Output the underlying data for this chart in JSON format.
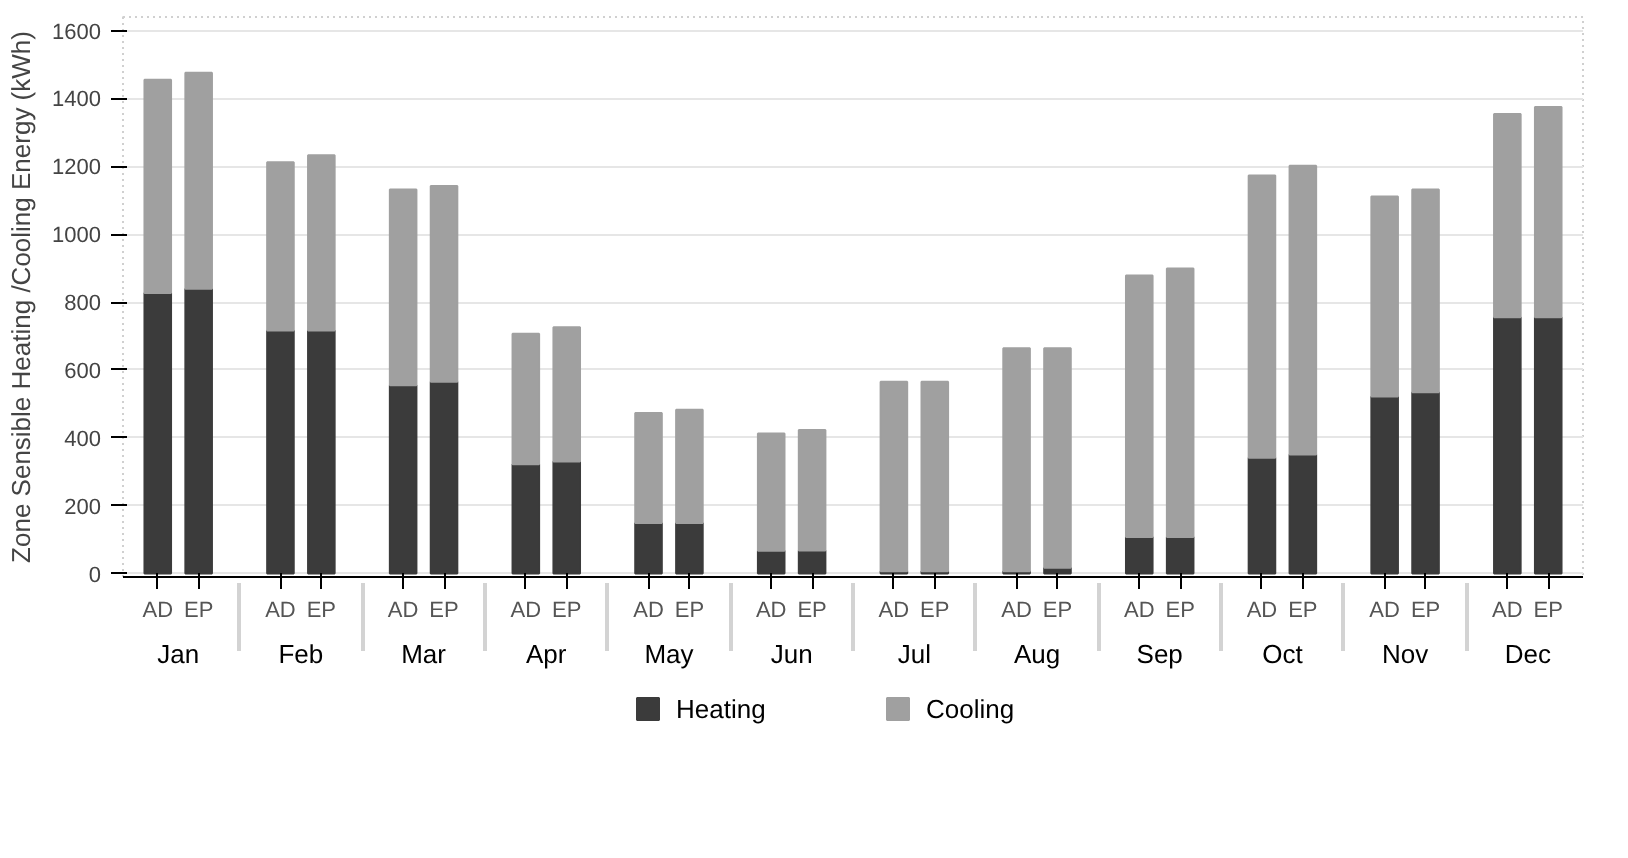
{
  "chart_data": {
    "type": "bar",
    "stacked": true,
    "ylabel": "Zone Sensible Heating /Cooling Energy (kWh)",
    "categories": [
      [
        "Jan",
        "AD"
      ],
      [
        null,
        "EP"
      ],
      [
        "Feb",
        "AD"
      ],
      [
        null,
        "EP"
      ],
      [
        "Mar",
        "AD"
      ],
      [
        null,
        "EP"
      ],
      [
        "Apr",
        "AD"
      ],
      [
        null,
        "EP"
      ],
      [
        "May",
        "AD"
      ],
      [
        null,
        "EP"
      ],
      [
        "Jun",
        "AD"
      ],
      [
        null,
        "EP"
      ],
      [
        "Jul",
        "AD"
      ],
      [
        null,
        "EP"
      ],
      [
        "Aug",
        "AD"
      ],
      [
        null,
        "EP"
      ],
      [
        "Sep",
        "AD"
      ],
      [
        null,
        "EP"
      ],
      [
        "Oct",
        "AD"
      ],
      [
        null,
        "EP"
      ],
      [
        "Nov",
        "AD"
      ],
      [
        null,
        "EP"
      ],
      [
        "Dec",
        "AD"
      ],
      [
        null,
        "EP"
      ]
    ],
    "series": [
      {
        "name": "Heating",
        "color": "#3b3b3b",
        "values": [
          827,
          839,
          716,
          716,
          555,
          565,
          322,
          330,
          149,
          149,
          67,
          68,
          7,
          7,
          7,
          17,
          108,
          108,
          341,
          351,
          522,
          534,
          755,
          755
        ]
      },
      {
        "name": "Cooling",
        "color": "#a0a0a0",
        "values": [
          628,
          637,
          496,
          517,
          577,
          577,
          385,
          396,
          324,
          334,
          346,
          355,
          558,
          558,
          657,
          647,
          770,
          791,
          832,
          851,
          589,
          598,
          599,
          620
        ]
      }
    ],
    "ylim": [
      -10,
      1640
    ],
    "yticks": [
      0,
      200,
      400,
      600,
      800,
      1000,
      1200,
      1400,
      1600
    ],
    "grid": "y",
    "legend": "bottom"
  }
}
